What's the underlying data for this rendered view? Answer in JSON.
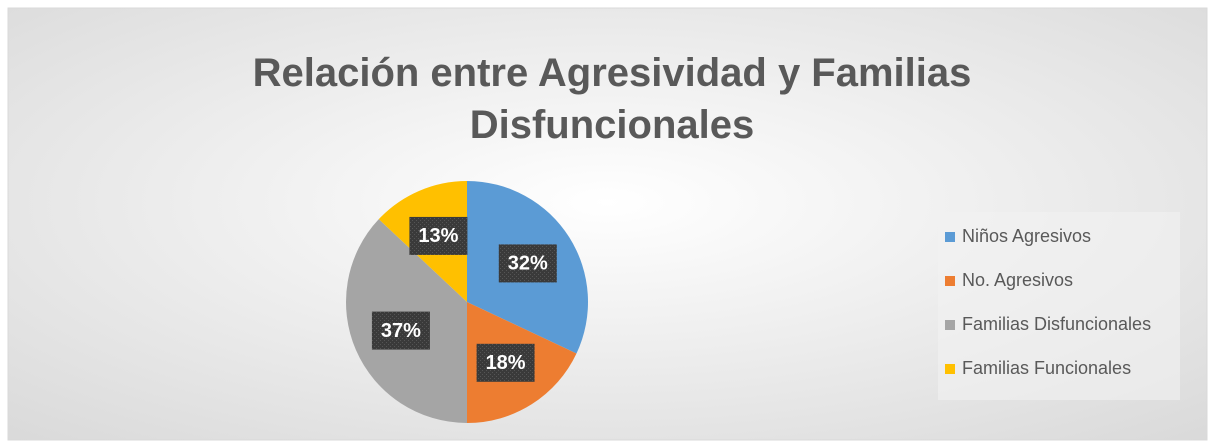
{
  "chart_data": {
    "type": "pie",
    "title": "Relación entre Agresividad y Familias Disfuncionales",
    "categories": [
      "Niños Agresivos",
      "No. Agresivos",
      "Familias Disfuncionales",
      "Familias Funcionales"
    ],
    "values": [
      32,
      18,
      37,
      13
    ],
    "value_labels": [
      "32%",
      "18%",
      "37%",
      "13%"
    ],
    "colors": [
      "#5b9bd5",
      "#ed7d31",
      "#a5a5a5",
      "#ffc000"
    ],
    "legend": "right"
  }
}
